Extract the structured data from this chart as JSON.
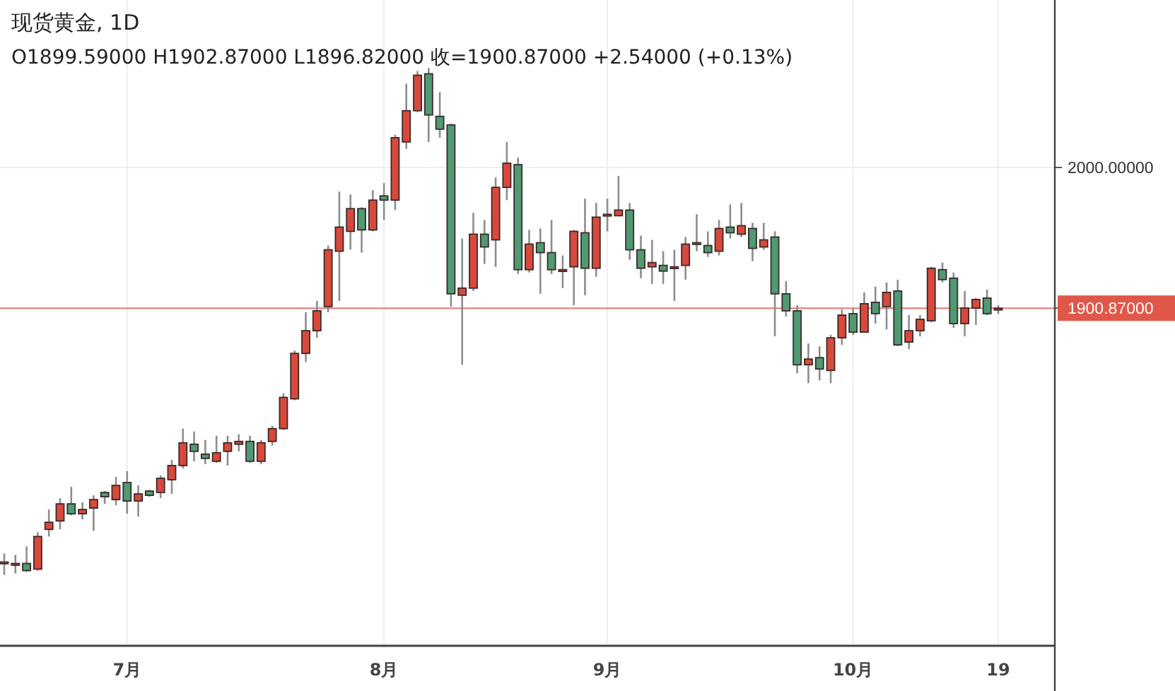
{
  "chart_data": {
    "type": "candlestick",
    "title": "现货黄金, 1D",
    "subtitle": "O1899.59000 H1902.87000 L1896.82000 收=1900.87000 +2.54000 (+0.13%)",
    "categories": [
      null,
      null,
      null,
      null,
      null,
      null,
      null,
      null,
      null,
      null,
      null,
      "7月",
      null,
      null,
      null,
      null,
      null,
      null,
      null,
      null,
      null,
      null,
      null,
      null,
      null,
      null,
      null,
      null,
      null,
      null,
      null,
      null,
      null,
      null,
      "8月",
      null,
      null,
      null,
      null,
      null,
      null,
      null,
      null,
      null,
      null,
      null,
      null,
      null,
      null,
      null,
      null,
      null,
      null,
      null,
      "9月",
      null,
      null,
      null,
      null,
      null,
      null,
      null,
      null,
      null,
      null,
      null,
      null,
      null,
      null,
      null,
      null,
      null,
      null,
      null,
      null,
      null,
      "10月",
      null,
      null,
      null,
      null,
      null,
      null,
      null,
      null,
      null,
      null,
      null,
      null,
      "19"
    ],
    "ohlc": [
      [
        1721,
        1728,
        1713,
        1722
      ],
      [
        1721,
        1727,
        1714,
        1721
      ],
      [
        1721,
        1733,
        1715,
        1716
      ],
      [
        1717,
        1743,
        1716,
        1740
      ],
      [
        1745,
        1759,
        1740,
        1750
      ],
      [
        1751,
        1767,
        1745,
        1763
      ],
      [
        1763,
        1775,
        1755,
        1756
      ],
      [
        1756,
        1764,
        1752,
        1759
      ],
      [
        1760,
        1769,
        1744,
        1766
      ],
      [
        1771,
        1772,
        1763,
        1768
      ],
      [
        1766,
        1782,
        1762,
        1776
      ],
      [
        1778,
        1786,
        1756,
        1765
      ],
      [
        1765,
        1776,
        1754,
        1770
      ],
      [
        1772,
        1773,
        1768,
        1769
      ],
      [
        1771,
        1783,
        1767,
        1781
      ],
      [
        1780,
        1794,
        1770,
        1790
      ],
      [
        1790,
        1816,
        1788,
        1806
      ],
      [
        1805,
        1814,
        1793,
        1800
      ],
      [
        1798,
        1808,
        1791,
        1795
      ],
      [
        1793,
        1811,
        1792,
        1799
      ],
      [
        1800,
        1811,
        1790,
        1806
      ],
      [
        1805,
        1812,
        1800,
        1807
      ],
      [
        1807,
        1811,
        1792,
        1793
      ],
      [
        1793,
        1808,
        1791,
        1806
      ],
      [
        1807,
        1818,
        1804,
        1816
      ],
      [
        1816,
        1841,
        1815,
        1838
      ],
      [
        1837,
        1871,
        1836,
        1869
      ],
      [
        1869,
        1898,
        1863,
        1885
      ],
      [
        1885,
        1906,
        1880,
        1899
      ],
      [
        1902,
        1945,
        1898,
        1942
      ],
      [
        1941,
        1983,
        1906,
        1958
      ],
      [
        1955,
        1981,
        1942,
        1971
      ],
      [
        1971,
        1972,
        1940,
        1956
      ],
      [
        1956,
        1984,
        1955,
        1977
      ],
      [
        1980,
        1989,
        1963,
        1977
      ],
      [
        1977,
        2023,
        1970,
        2021
      ],
      [
        2018,
        2059,
        2013,
        2040
      ],
      [
        2040,
        2068,
        2039,
        2065
      ],
      [
        2066,
        2070,
        2018,
        2037
      ],
      [
        2036,
        2053,
        2021,
        2027
      ],
      [
        2030,
        2031,
        1902,
        1911
      ],
      [
        1910,
        1950,
        1861,
        1915
      ],
      [
        1915,
        1968,
        1913,
        1953
      ],
      [
        1953,
        1963,
        1932,
        1944
      ],
      [
        1949,
        1993,
        1930,
        1986
      ],
      [
        1986,
        2018,
        1977,
        2003
      ],
      [
        2002,
        2007,
        1925,
        1928
      ],
      [
        1928,
        1956,
        1926,
        1946
      ],
      [
        1947,
        1957,
        1911,
        1940
      ],
      [
        1940,
        1963,
        1925,
        1928
      ],
      [
        1927,
        1938,
        1915,
        1928
      ],
      [
        1930,
        1956,
        1903,
        1955
      ],
      [
        1954,
        1978,
        1910,
        1929
      ],
      [
        1929,
        1975,
        1923,
        1965
      ],
      [
        1966,
        1978,
        1955,
        1967
      ],
      [
        1966,
        1994,
        1966,
        1970
      ],
      [
        1970,
        1975,
        1935,
        1942
      ],
      [
        1942,
        1952,
        1922,
        1929
      ],
      [
        1930,
        1949,
        1918,
        1933
      ],
      [
        1931,
        1941,
        1918,
        1927
      ],
      [
        1929,
        1942,
        1906,
        1930
      ],
      [
        1931,
        1951,
        1921,
        1946
      ],
      [
        1947,
        1967,
        1941,
        1946
      ],
      [
        1945,
        1955,
        1937,
        1940
      ],
      [
        1941,
        1963,
        1938,
        1957
      ],
      [
        1958,
        1974,
        1950,
        1954
      ],
      [
        1953,
        1975,
        1951,
        1959
      ],
      [
        1957,
        1961,
        1934,
        1943
      ],
      [
        1944,
        1961,
        1942,
        1949
      ],
      [
        1951,
        1955,
        1881,
        1911
      ],
      [
        1911,
        1920,
        1895,
        1899
      ],
      [
        1899,
        1903,
        1855,
        1861
      ],
      [
        1861,
        1876,
        1848,
        1865
      ],
      [
        1866,
        1874,
        1850,
        1858
      ],
      [
        1857,
        1882,
        1848,
        1880
      ],
      [
        1880,
        1900,
        1875,
        1896
      ],
      [
        1897,
        1901,
        1882,
        1884
      ],
      [
        1884,
        1912,
        1884,
        1904
      ],
      [
        1905,
        1916,
        1890,
        1897
      ],
      [
        1902,
        1919,
        1886,
        1912
      ],
      [
        1913,
        1921,
        1874,
        1875
      ],
      [
        1877,
        1896,
        1872,
        1885
      ],
      [
        1885,
        1896,
        1881,
        1893
      ],
      [
        1892,
        1930,
        1891,
        1929
      ],
      [
        1928,
        1933,
        1919,
        1921
      ],
      [
        1922,
        1926,
        1887,
        1890
      ],
      [
        1890,
        1913,
        1881,
        1901
      ],
      [
        1901,
        1908,
        1889,
        1907
      ],
      [
        1908,
        1914,
        1896,
        1897
      ],
      [
        1899.59,
        1902.87,
        1896.82,
        1900.87
      ]
    ],
    "colors": [
      "#d9493b",
      "#d9493b",
      "#4f9a72",
      "#d9493b",
      "#d9493b",
      "#d9493b",
      "#4f9a72",
      "#d9493b",
      "#d9493b",
      "#4f9a72",
      "#d9493b",
      "#4f9a72",
      "#d9493b",
      "#4f9a72",
      "#d9493b",
      "#d9493b",
      "#d9493b",
      "#4f9a72",
      "#4f9a72",
      "#d9493b",
      "#d9493b",
      "#d9493b",
      "#4f9a72",
      "#d9493b",
      "#d9493b",
      "#d9493b",
      "#d9493b",
      "#d9493b",
      "#d9493b",
      "#d9493b",
      "#d9493b",
      "#d9493b",
      "#4f9a72",
      "#d9493b",
      "#4f9a72",
      "#d9493b",
      "#d9493b",
      "#d9493b",
      "#4f9a72",
      "#4f9a72",
      "#4f9a72",
      "#d9493b",
      "#d9493b",
      "#4f9a72",
      "#d9493b",
      "#d9493b",
      "#4f9a72",
      "#d9493b",
      "#4f9a72",
      "#4f9a72",
      "#d9493b",
      "#d9493b",
      "#4f9a72",
      "#d9493b",
      "#d9493b",
      "#d9493b",
      "#4f9a72",
      "#4f9a72",
      "#d9493b",
      "#4f9a72",
      "#d9493b",
      "#d9493b",
      "#4f9a72",
      "#4f9a72",
      "#d9493b",
      "#4f9a72",
      "#d9493b",
      "#4f9a72",
      "#d9493b",
      "#4f9a72",
      "#4f9a72",
      "#4f9a72",
      "#d9493b",
      "#4f9a72",
      "#d9493b",
      "#d9493b",
      "#4f9a72",
      "#d9493b",
      "#4f9a72",
      "#d9493b",
      "#4f9a72",
      "#d9493b",
      "#d9493b",
      "#d9493b",
      "#4f9a72",
      "#4f9a72",
      "#d9493b",
      "#d9493b",
      "#4f9a72",
      "#d9493b"
    ],
    "ylim": [
      1663,
      2118
    ],
    "yticks": [
      {
        "value": 1900.87,
        "label": "1900.87000"
      },
      {
        "value": 2000,
        "label": "2000.00000"
      }
    ],
    "ref_lines": [
      {
        "axis": "y",
        "value": 1900.87,
        "color": "#e0574a"
      }
    ],
    "grid": true
  }
}
